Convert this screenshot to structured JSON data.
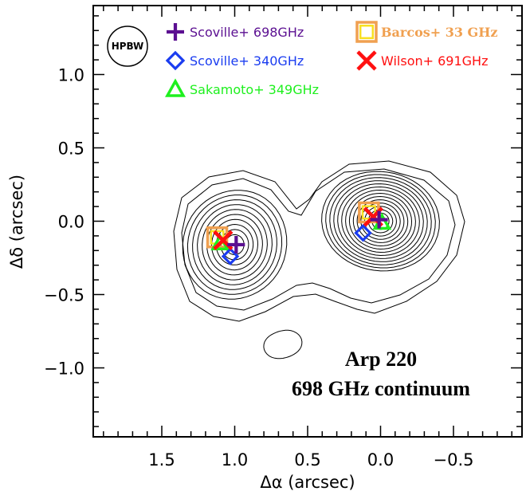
{
  "chart_data": {
    "type": "scatter",
    "xlabel": "Δα (arcsec)",
    "ylabel": "Δδ (arcsec)",
    "xlim": [
      1.97,
      -0.97
    ],
    "ylim": [
      -1.47,
      1.47
    ],
    "x_ticks": [
      {
        "value": 1.5,
        "label": "1.5"
      },
      {
        "value": 1.0,
        "label": "1.0"
      },
      {
        "value": 0.5,
        "label": "0.5"
      },
      {
        "value": 0.0,
        "label": "0.0"
      },
      {
        "value": -0.5,
        "label": "−0.5"
      }
    ],
    "y_ticks": [
      {
        "value": 1.0,
        "label": "1.0"
      },
      {
        "value": 0.5,
        "label": "0.5"
      },
      {
        "value": 0.0,
        "label": "0.0"
      },
      {
        "value": -0.5,
        "label": "−0.5"
      },
      {
        "value": -1.0,
        "label": "−1.0"
      }
    ],
    "beam_label": "HPBW",
    "annotation": [
      "Arp 220",
      "698 GHz continuum"
    ],
    "series": [
      {
        "name": "Scoville+ 698GHz",
        "marker": "plus",
        "color": "#5b0f91",
        "points": [
          [
            0.99,
            -0.16
          ],
          [
            0.01,
            0.01
          ]
        ]
      },
      {
        "name": "Scoville+ 340GHz",
        "marker": "diamond",
        "color": "#1a3cf0",
        "points": [
          [
            1.03,
            -0.24
          ],
          [
            0.12,
            -0.08
          ]
        ]
      },
      {
        "name": "Sakamoto+ 349GHz",
        "marker": "triangle",
        "color": "#1ef01e",
        "points": [
          [
            1.1,
            -0.15
          ],
          [
            -0.01,
            -0.01
          ]
        ]
      },
      {
        "name": "Barcos+ 33 GHz",
        "marker": "square",
        "color": "#f0a050",
        "inner_color": "#f8e020",
        "points": [
          [
            1.12,
            -0.11
          ],
          [
            0.08,
            0.06
          ]
        ]
      },
      {
        "name": "Wilson+ 691GHz",
        "marker": "x",
        "color": "#ff1010",
        "points": [
          [
            1.08,
            -0.13
          ],
          [
            0.05,
            0.03
          ]
        ]
      }
    ],
    "contours": {
      "color": "#000000",
      "sources": [
        {
          "x": 1.0,
          "y": -0.16,
          "levels": 10
        },
        {
          "x": 0.0,
          "y": 0.0,
          "levels": 14
        }
      ]
    }
  }
}
